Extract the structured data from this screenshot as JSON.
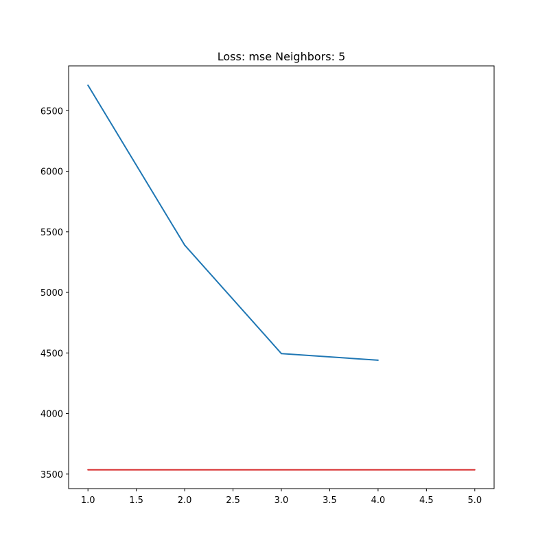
{
  "chart_data": {
    "type": "line",
    "title": "Loss: mse Neighbors: 5",
    "xlabel": "",
    "ylabel": "",
    "xlim": [
      0.8,
      5.2
    ],
    "ylim": [
      3380,
      6870
    ],
    "x_ticks": [
      "1.0",
      "1.5",
      "2.0",
      "2.5",
      "3.0",
      "3.5",
      "4.0",
      "4.5",
      "5.0"
    ],
    "y_ticks": [
      "3500",
      "4000",
      "4500",
      "5000",
      "5500",
      "6000",
      "6500"
    ],
    "grid": false,
    "series": [
      {
        "color": "#1f77b4",
        "x": [
          1,
          2,
          3,
          4
        ],
        "y": [
          6710,
          5390,
          4495,
          4440
        ]
      },
      {
        "color": "#d62728",
        "x": [
          1,
          5
        ],
        "y": [
          3535,
          3535
        ]
      }
    ]
  }
}
